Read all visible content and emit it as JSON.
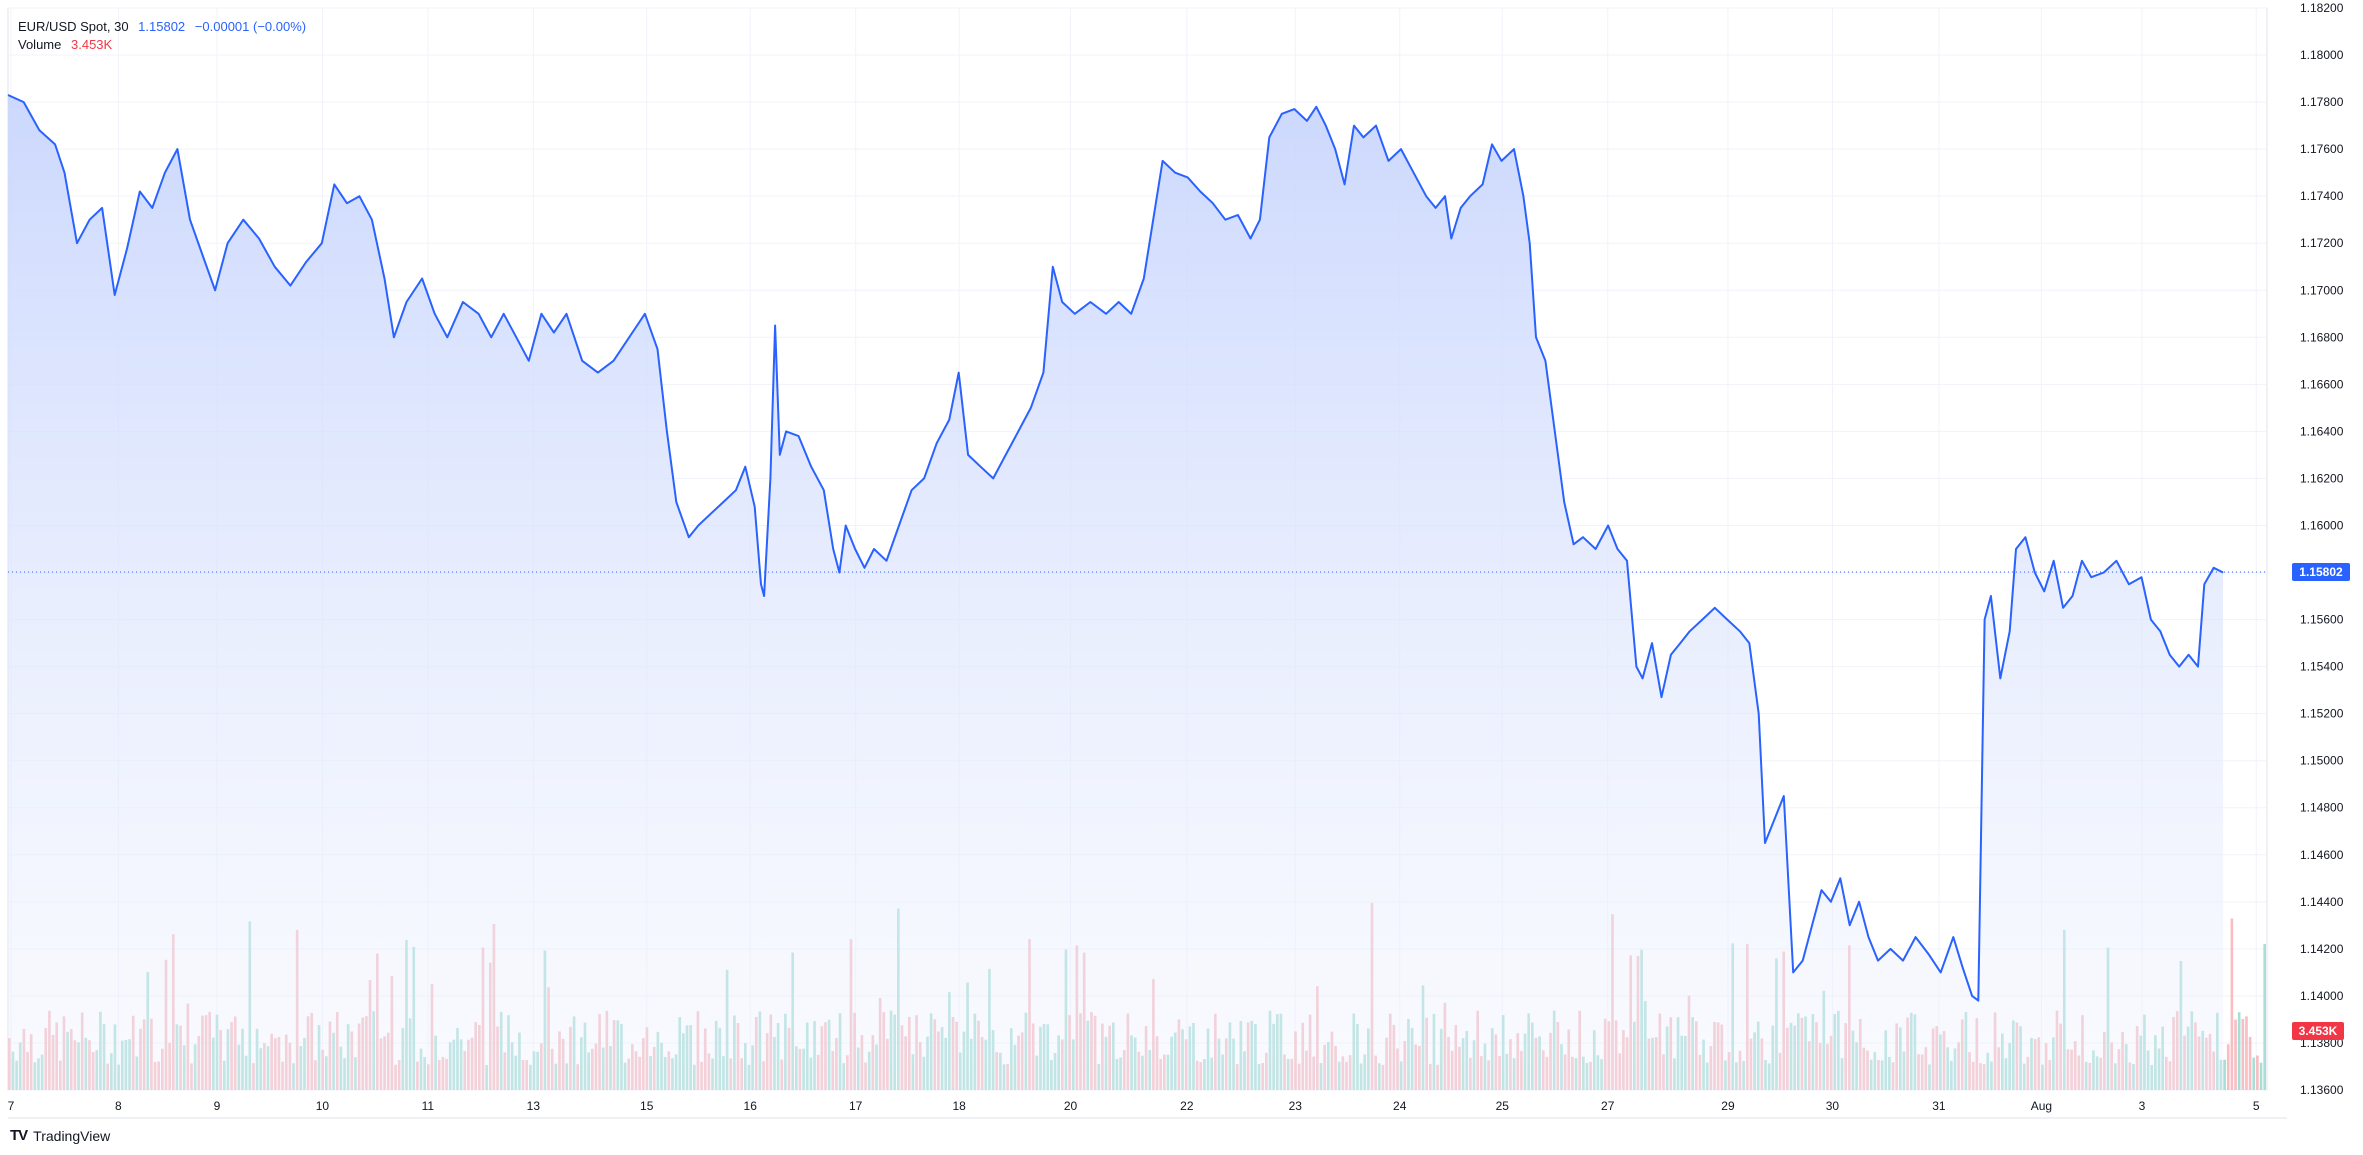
{
  "legend": {
    "symbol": "EUR/USD Spot, 30",
    "last": "1.15802",
    "change": "−0.00001 (−0.00%)",
    "volume_label": "Volume",
    "volume_value": "3.453K"
  },
  "brand": {
    "logo": "TV",
    "name": "TradingView"
  },
  "price_badge": "1.15802",
  "volume_badge": "3.453K",
  "colors": {
    "line": "#2962ff",
    "area_top": "#c5d3fd",
    "vol_up": "#9ad8cf",
    "vol_down": "#f6b3b8",
    "badge_blue": "#2962ff",
    "badge_red": "#f23645",
    "grid": "#f0f3fa"
  },
  "chart_data": {
    "type": "area",
    "title": "EUR/USD Spot, 30",
    "ylim": [
      1.136,
      1.182
    ],
    "y_ticks": [
      "1.18200",
      "1.18000",
      "1.17800",
      "1.17600",
      "1.17400",
      "1.17200",
      "1.17000",
      "1.16800",
      "1.16600",
      "1.16400",
      "1.16200",
      "1.16000",
      "1.15800",
      "1.15600",
      "1.15400",
      "1.15200",
      "1.15000",
      "1.14800",
      "1.14600",
      "1.14400",
      "1.14200",
      "1.14000",
      "1.13800",
      "1.13600"
    ],
    "x_ticks": [
      "7",
      "8",
      "9",
      "10",
      "11",
      "13",
      "15",
      "16",
      "17",
      "18",
      "20",
      "22",
      "23",
      "24",
      "25",
      "27",
      "29",
      "30",
      "31",
      "Aug",
      "3",
      "5"
    ],
    "grid": true,
    "last_price": 1.15802,
    "price_series": [
      [
        0,
        1.1783
      ],
      [
        0.5,
        1.178
      ],
      [
        1,
        1.1768
      ],
      [
        1.5,
        1.1762
      ],
      [
        1.8,
        1.175
      ],
      [
        2.2,
        1.172
      ],
      [
        2.6,
        1.173
      ],
      [
        3,
        1.1735
      ],
      [
        3.4,
        1.1698
      ],
      [
        3.8,
        1.1718
      ],
      [
        4.2,
        1.1742
      ],
      [
        4.6,
        1.1735
      ],
      [
        5,
        1.175
      ],
      [
        5.4,
        1.176
      ],
      [
        5.8,
        1.173
      ],
      [
        6.2,
        1.1715
      ],
      [
        6.6,
        1.17
      ],
      [
        7,
        1.172
      ],
      [
        7.5,
        1.173
      ],
      [
        8,
        1.1722
      ],
      [
        8.5,
        1.171
      ],
      [
        9,
        1.1702
      ],
      [
        9.5,
        1.1712
      ],
      [
        10,
        1.172
      ],
      [
        10.4,
        1.1745
      ],
      [
        10.8,
        1.1737
      ],
      [
        11.2,
        1.174
      ],
      [
        11.6,
        1.173
      ],
      [
        12,
        1.1705
      ],
      [
        12.3,
        1.168
      ],
      [
        12.7,
        1.1695
      ],
      [
        13.2,
        1.1705
      ],
      [
        13.6,
        1.169
      ],
      [
        14,
        1.168
      ],
      [
        14.5,
        1.1695
      ],
      [
        15,
        1.169
      ],
      [
        15.4,
        1.168
      ],
      [
        15.8,
        1.169
      ],
      [
        16.2,
        1.168
      ],
      [
        16.6,
        1.167
      ],
      [
        17,
        1.169
      ],
      [
        17.4,
        1.1682
      ],
      [
        17.8,
        1.169
      ],
      [
        18.3,
        1.167
      ],
      [
        18.8,
        1.1665
      ],
      [
        19.3,
        1.167
      ],
      [
        19.8,
        1.168
      ],
      [
        20.3,
        1.169
      ],
      [
        20.7,
        1.1675
      ],
      [
        21,
        1.164
      ],
      [
        21.3,
        1.161
      ],
      [
        21.7,
        1.1595
      ],
      [
        22,
        1.16
      ],
      [
        22.4,
        1.1605
      ],
      [
        22.8,
        1.161
      ],
      [
        23.2,
        1.1615
      ],
      [
        23.5,
        1.1625
      ],
      [
        23.8,
        1.1608
      ],
      [
        24,
        1.1575
      ],
      [
        24.1,
        1.157
      ],
      [
        24.3,
        1.162
      ],
      [
        24.45,
        1.1685
      ],
      [
        24.6,
        1.163
      ],
      [
        24.8,
        1.164
      ],
      [
        25.2,
        1.1638
      ],
      [
        25.6,
        1.1625
      ],
      [
        26,
        1.1615
      ],
      [
        26.3,
        1.159
      ],
      [
        26.5,
        1.158
      ],
      [
        26.7,
        1.16
      ],
      [
        27,
        1.159
      ],
      [
        27.3,
        1.1582
      ],
      [
        27.6,
        1.159
      ],
      [
        28,
        1.1585
      ],
      [
        28.4,
        1.16
      ],
      [
        28.8,
        1.1615
      ],
      [
        29.2,
        1.162
      ],
      [
        29.6,
        1.1635
      ],
      [
        30,
        1.1645
      ],
      [
        30.3,
        1.1665
      ],
      [
        30.6,
        1.163
      ],
      [
        31,
        1.1625
      ],
      [
        31.4,
        1.162
      ],
      [
        31.8,
        1.163
      ],
      [
        32.2,
        1.164
      ],
      [
        32.6,
        1.165
      ],
      [
        33,
        1.1665
      ],
      [
        33.3,
        1.171
      ],
      [
        33.6,
        1.1695
      ],
      [
        34,
        1.169
      ],
      [
        34.5,
        1.1695
      ],
      [
        35,
        1.169
      ],
      [
        35.4,
        1.1695
      ],
      [
        35.8,
        1.169
      ],
      [
        36.2,
        1.1705
      ],
      [
        36.5,
        1.173
      ],
      [
        36.8,
        1.1755
      ],
      [
        37.2,
        1.175
      ],
      [
        37.6,
        1.1748
      ],
      [
        38,
        1.1742
      ],
      [
        38.4,
        1.1737
      ],
      [
        38.8,
        1.173
      ],
      [
        39.2,
        1.1732
      ],
      [
        39.6,
        1.1722
      ],
      [
        39.9,
        1.173
      ],
      [
        40.2,
        1.1765
      ],
      [
        40.6,
        1.1775
      ],
      [
        41,
        1.1777
      ],
      [
        41.4,
        1.1772
      ],
      [
        41.7,
        1.1778
      ],
      [
        42,
        1.177
      ],
      [
        42.3,
        1.176
      ],
      [
        42.6,
        1.1745
      ],
      [
        42.9,
        1.177
      ],
      [
        43.2,
        1.1765
      ],
      [
        43.6,
        1.177
      ],
      [
        44,
        1.1755
      ],
      [
        44.4,
        1.176
      ],
      [
        44.8,
        1.175
      ],
      [
        45.2,
        1.174
      ],
      [
        45.5,
        1.1735
      ],
      [
        45.8,
        1.174
      ],
      [
        46,
        1.1722
      ],
      [
        46.3,
        1.1735
      ],
      [
        46.6,
        1.174
      ],
      [
        47,
        1.1745
      ],
      [
        47.3,
        1.1762
      ],
      [
        47.6,
        1.1755
      ],
      [
        48,
        1.176
      ],
      [
        48.3,
        1.174
      ],
      [
        48.5,
        1.172
      ],
      [
        48.7,
        1.168
      ],
      [
        49,
        1.167
      ],
      [
        49.3,
        1.164
      ],
      [
        49.6,
        1.161
      ],
      [
        49.9,
        1.1592
      ],
      [
        50.2,
        1.1595
      ],
      [
        50.6,
        1.159
      ],
      [
        51,
        1.16
      ],
      [
        51.3,
        1.159
      ],
      [
        51.6,
        1.1585
      ],
      [
        51.9,
        1.154
      ],
      [
        52.1,
        1.1535
      ],
      [
        52.4,
        1.155
      ],
      [
        52.7,
        1.1527
      ],
      [
        53,
        1.1545
      ],
      [
        53.3,
        1.155
      ],
      [
        53.6,
        1.1555
      ],
      [
        54,
        1.156
      ],
      [
        54.4,
        1.1565
      ],
      [
        54.8,
        1.156
      ],
      [
        55.2,
        1.1555
      ],
      [
        55.5,
        1.155
      ],
      [
        55.8,
        1.152
      ],
      [
        56,
        1.1465
      ],
      [
        56.3,
        1.1475
      ],
      [
        56.6,
        1.1485
      ],
      [
        56.9,
        1.141
      ],
      [
        57.2,
        1.1415
      ],
      [
        57.5,
        1.143
      ],
      [
        57.8,
        1.1445
      ],
      [
        58.1,
        1.144
      ],
      [
        58.4,
        1.145
      ],
      [
        58.7,
        1.143
      ],
      [
        59,
        1.144
      ],
      [
        59.3,
        1.1425
      ],
      [
        59.6,
        1.1415
      ],
      [
        60,
        1.142
      ],
      [
        60.4,
        1.1415
      ],
      [
        60.8,
        1.1425
      ],
      [
        61.2,
        1.1418
      ],
      [
        61.6,
        1.141
      ],
      [
        62,
        1.1425
      ],
      [
        62.3,
        1.1412
      ],
      [
        62.6,
        1.14
      ],
      [
        62.8,
        1.1398
      ],
      [
        63,
        1.156
      ],
      [
        63.2,
        1.157
      ],
      [
        63.5,
        1.1535
      ],
      [
        63.8,
        1.1555
      ],
      [
        64,
        1.159
      ],
      [
        64.3,
        1.1595
      ],
      [
        64.6,
        1.158
      ],
      [
        64.9,
        1.1572
      ],
      [
        65.2,
        1.1585
      ],
      [
        65.5,
        1.1565
      ],
      [
        65.8,
        1.157
      ],
      [
        66.1,
        1.1585
      ],
      [
        66.4,
        1.1578
      ],
      [
        66.8,
        1.158
      ],
      [
        67.2,
        1.1585
      ],
      [
        67.6,
        1.1575
      ],
      [
        68,
        1.1578
      ],
      [
        68.3,
        1.156
      ],
      [
        68.6,
        1.1555
      ],
      [
        68.9,
        1.1545
      ],
      [
        69.2,
        1.154
      ],
      [
        69.5,
        1.1545
      ],
      [
        69.8,
        1.154
      ],
      [
        70,
        1.1575
      ],
      [
        70.3,
        1.1582
      ],
      [
        70.6,
        1.158
      ]
    ],
    "volume_ylim": [
      0,
      1000
    ],
    "volume_bars": []
  }
}
